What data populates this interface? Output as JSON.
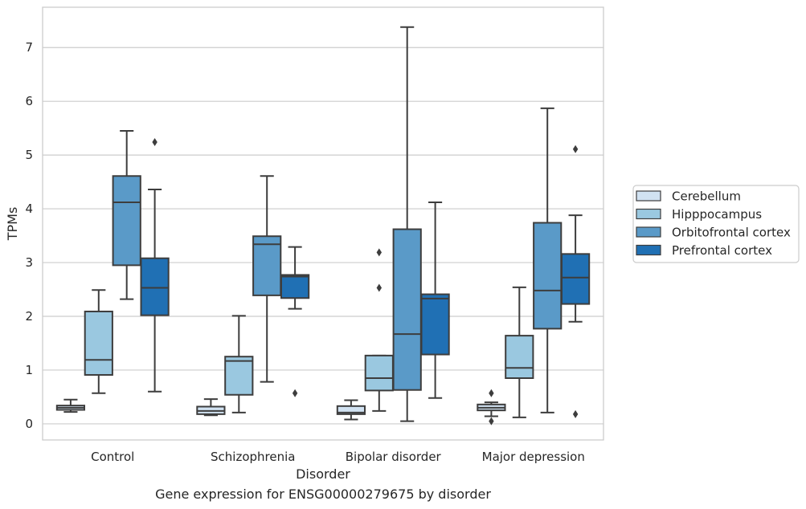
{
  "caption": "Gene expression for ENSG00000279675 by disorder",
  "chart_data": {
    "type": "box",
    "xlabel": "Disorder",
    "ylabel": "TPMs",
    "ylim": [
      -0.3,
      7.75
    ],
    "yticks": [
      0,
      1,
      2,
      3,
      4,
      5,
      6,
      7
    ],
    "grid": true,
    "legend_position": "right",
    "categories": [
      "Control",
      "Schizophrenia",
      "Bipolar disorder",
      "Major depression"
    ],
    "series": [
      {
        "name": "Cerebellum",
        "color": "#d1e2f2",
        "boxes": [
          {
            "whislo": 0.22,
            "q1": 0.26,
            "med": 0.3,
            "q3": 0.34,
            "whishi": 0.45,
            "fliers": []
          },
          {
            "whislo": 0.16,
            "q1": 0.18,
            "med": 0.24,
            "q3": 0.32,
            "whishi": 0.46,
            "fliers": []
          },
          {
            "whislo": 0.08,
            "q1": 0.18,
            "med": 0.21,
            "q3": 0.33,
            "whishi": 0.44,
            "fliers": []
          },
          {
            "whislo": 0.14,
            "q1": 0.25,
            "med": 0.3,
            "q3": 0.36,
            "whishi": 0.4,
            "fliers": [
              0.57,
              0.05
            ]
          }
        ]
      },
      {
        "name": "Hipppocampus",
        "color": "#9ac8e0",
        "boxes": [
          {
            "whislo": 0.57,
            "q1": 0.91,
            "med": 1.19,
            "q3": 2.09,
            "whishi": 2.49,
            "fliers": []
          },
          {
            "whislo": 0.21,
            "q1": 0.54,
            "med": 1.17,
            "q3": 1.25,
            "whishi": 2.01,
            "fliers": []
          },
          {
            "whislo": 0.24,
            "q1": 0.62,
            "med": 0.85,
            "q3": 1.27,
            "whishi": 1.27,
            "fliers": [
              3.19,
              2.53
            ]
          },
          {
            "whislo": 0.12,
            "q1": 0.85,
            "med": 1.04,
            "q3": 1.64,
            "whishi": 2.54,
            "fliers": []
          }
        ]
      },
      {
        "name": "Orbitofrontal cortex",
        "color": "#5a9ac8",
        "boxes": [
          {
            "whislo": 2.32,
            "q1": 2.95,
            "med": 4.12,
            "q3": 4.61,
            "whishi": 5.45,
            "fliers": []
          },
          {
            "whislo": 0.78,
            "q1": 2.39,
            "med": 3.34,
            "q3": 3.49,
            "whishi": 4.61,
            "fliers": []
          },
          {
            "whislo": 0.05,
            "q1": 0.63,
            "med": 1.67,
            "q3": 3.62,
            "whishi": 7.38,
            "fliers": []
          },
          {
            "whislo": 0.21,
            "q1": 1.77,
            "med": 2.48,
            "q3": 3.74,
            "whishi": 5.87,
            "fliers": []
          }
        ]
      },
      {
        "name": "Prefrontal cortex",
        "color": "#2070b4",
        "boxes": [
          {
            "whislo": 0.6,
            "q1": 2.02,
            "med": 2.53,
            "q3": 3.08,
            "whishi": 4.36,
            "fliers": [
              5.24
            ]
          },
          {
            "whislo": 2.14,
            "q1": 2.34,
            "med": 2.74,
            "q3": 2.77,
            "whishi": 3.29,
            "fliers": [
              0.57
            ]
          },
          {
            "whislo": 0.48,
            "q1": 1.29,
            "med": 2.33,
            "q3": 2.41,
            "whishi": 4.12,
            "fliers": []
          },
          {
            "whislo": 1.9,
            "q1": 2.23,
            "med": 2.72,
            "q3": 3.16,
            "whishi": 3.88,
            "fliers": [
              5.11,
              0.18
            ]
          }
        ]
      }
    ]
  }
}
